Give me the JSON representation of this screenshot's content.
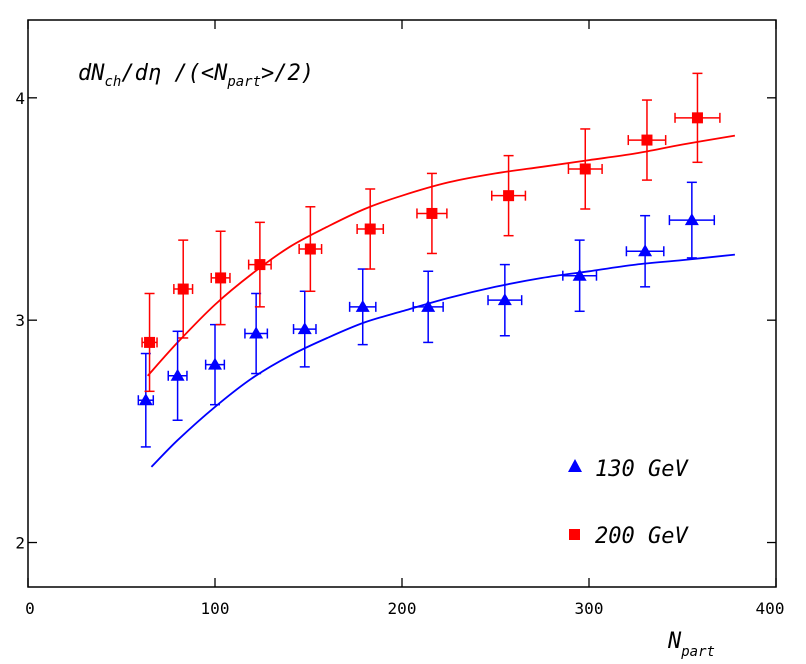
{
  "chart_data": {
    "type": "scatter",
    "title": {
      "part1": "dN",
      "sub1": "ch",
      "part2": "/dη  /(<N",
      "sub2": "part",
      "part3": ">/2)"
    },
    "xlabel": {
      "main": "N",
      "sub": "part"
    },
    "xlim": [
      0,
      400
    ],
    "ylim": [
      1.8,
      4.35
    ],
    "xticks": [
      0,
      100,
      200,
      300,
      400
    ],
    "xtick_labels": [
      "0",
      "100",
      "200",
      "300",
      "400"
    ],
    "yticks": [
      2,
      3,
      4
    ],
    "ytick_labels": [
      "2",
      "3",
      "4"
    ],
    "grid": false,
    "legend_position": "bottom-right",
    "series": [
      {
        "name": "130 GeV",
        "color": "#0000ff",
        "marker": "triangle",
        "points": [
          {
            "x": 63,
            "y": 2.64,
            "xerr": 4,
            "yerr": 0.21
          },
          {
            "x": 80,
            "y": 2.75,
            "xerr": 5,
            "yerr": 0.2
          },
          {
            "x": 100,
            "y": 2.8,
            "xerr": 5,
            "yerr": 0.18
          },
          {
            "x": 122,
            "y": 2.94,
            "xerr": 6,
            "yerr": 0.18
          },
          {
            "x": 148,
            "y": 2.96,
            "xerr": 6,
            "yerr": 0.17
          },
          {
            "x": 179,
            "y": 3.06,
            "xerr": 7,
            "yerr": 0.17
          },
          {
            "x": 214,
            "y": 3.06,
            "xerr": 8,
            "yerr": 0.16
          },
          {
            "x": 255,
            "y": 3.09,
            "xerr": 9,
            "yerr": 0.16
          },
          {
            "x": 295,
            "y": 3.2,
            "xerr": 9,
            "yerr": 0.16
          },
          {
            "x": 330,
            "y": 3.31,
            "xerr": 10,
            "yerr": 0.16
          },
          {
            "x": 355,
            "y": 3.45,
            "xerr": 12,
            "yerr": 0.17
          }
        ],
        "curve": {
          "x": [
            66,
            80,
            100,
            120,
            140,
            160,
            180,
            200,
            225,
            250,
            275,
            300,
            325,
            350,
            378
          ],
          "y": [
            2.34,
            2.46,
            2.61,
            2.74,
            2.84,
            2.92,
            2.99,
            3.04,
            3.1,
            3.15,
            3.19,
            3.22,
            3.25,
            3.27,
            3.295
          ]
        }
      },
      {
        "name": "200 GeV",
        "color": "#ff0000",
        "marker": "square",
        "points": [
          {
            "x": 65,
            "y": 2.9,
            "xerr": 4,
            "yerr": 0.22
          },
          {
            "x": 83,
            "y": 3.14,
            "xerr": 5,
            "yerr": 0.22
          },
          {
            "x": 103,
            "y": 3.19,
            "xerr": 5,
            "yerr": 0.21
          },
          {
            "x": 124,
            "y": 3.25,
            "xerr": 6,
            "yerr": 0.19
          },
          {
            "x": 151,
            "y": 3.32,
            "xerr": 6,
            "yerr": 0.19
          },
          {
            "x": 183,
            "y": 3.41,
            "xerr": 7,
            "yerr": 0.18
          },
          {
            "x": 216,
            "y": 3.48,
            "xerr": 8,
            "yerr": 0.18
          },
          {
            "x": 257,
            "y": 3.56,
            "xerr": 9,
            "yerr": 0.18
          },
          {
            "x": 298,
            "y": 3.68,
            "xerr": 9,
            "yerr": 0.18
          },
          {
            "x": 331,
            "y": 3.81,
            "xerr": 10,
            "yerr": 0.18
          },
          {
            "x": 358,
            "y": 3.91,
            "xerr": 12,
            "yerr": 0.2
          }
        ],
        "curve": {
          "x": [
            64,
            80,
            100,
            120,
            140,
            160,
            180,
            200,
            225,
            250,
            275,
            300,
            325,
            350,
            378
          ],
          "y": [
            2.75,
            2.9,
            3.07,
            3.21,
            3.33,
            3.42,
            3.5,
            3.56,
            3.62,
            3.66,
            3.69,
            3.72,
            3.75,
            3.79,
            3.83
          ]
        }
      }
    ]
  }
}
